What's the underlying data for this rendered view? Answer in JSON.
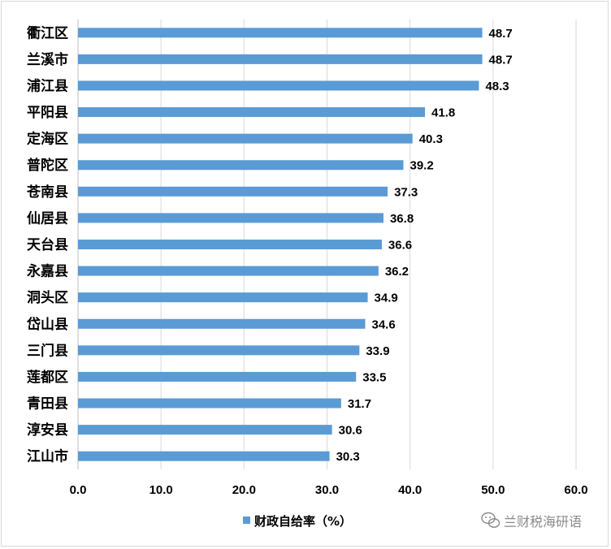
{
  "chart_data": {
    "type": "bar",
    "orientation": "horizontal",
    "categories": [
      "衢江区",
      "兰溪市",
      "浦江县",
      "平阳县",
      "定海区",
      "普陀区",
      "苍南县",
      "仙居县",
      "天台县",
      "永嘉县",
      "洞头区",
      "岱山县",
      "三门县",
      "莲都区",
      "青田县",
      "淳安县",
      "江山市"
    ],
    "values": [
      48.7,
      48.7,
      48.3,
      41.8,
      40.3,
      39.2,
      37.3,
      36.8,
      36.6,
      36.2,
      34.9,
      34.6,
      33.9,
      33.5,
      31.7,
      30.6,
      30.3
    ],
    "value_labels": [
      "48.7",
      "48.7",
      "48.3",
      "41.8",
      "40.3",
      "39.2",
      "37.3",
      "36.8",
      "36.6",
      "36.2",
      "34.9",
      "34.6",
      "33.9",
      "33.5",
      "31.7",
      "30.6",
      "30.3"
    ],
    "series": [
      {
        "name": "财政自给率（%）"
      }
    ],
    "xlim": [
      0,
      60
    ],
    "x_ticks": [
      "0.0",
      "10.0",
      "20.0",
      "30.0",
      "40.0",
      "50.0",
      "60.0"
    ],
    "grid": true,
    "legend_position": "bottom",
    "bar_color": "#5b9bd5",
    "grid_color": "#d9d9d9"
  },
  "watermark": {
    "text": "兰财税海研语",
    "icon": "wechat-icon"
  }
}
